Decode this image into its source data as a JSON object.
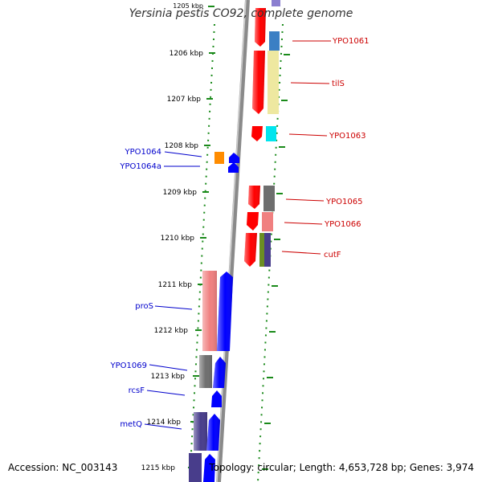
{
  "title": "Yersinia pestis CO92, complete genome",
  "footer": {
    "accession": "Accession: NC_003143",
    "topology": "Topology: circular; Length: 4,653,728 bp; Genes: 3,974"
  },
  "colors": {
    "label_forward": "#0000cc",
    "label_reverse": "#cc0000",
    "ticks": "#1a8a1a",
    "backbone": "#8a8a8a"
  },
  "scale_ticks": [
    "1205 kbp",
    "1206 kbp",
    "1207 kbp",
    "1208 kbp",
    "1209 kbp",
    "1210 kbp",
    "1211 kbp",
    "1212 kbp",
    "1213 kbp",
    "1214 kbp",
    "1215 kbp"
  ],
  "reverse_genes": [
    {
      "label": "YPO1061"
    },
    {
      "label": "tilS"
    },
    {
      "label": "YPO1063"
    },
    {
      "label": "YPO1065"
    },
    {
      "label": "YPO1066"
    },
    {
      "label": "cutF"
    }
  ],
  "forward_genes": [
    {
      "label": "YPO1064"
    },
    {
      "label": "YPO1064a"
    },
    {
      "label": "proS"
    },
    {
      "label": "YPO1069"
    },
    {
      "label": "rcsF"
    },
    {
      "label": "metQ"
    }
  ]
}
